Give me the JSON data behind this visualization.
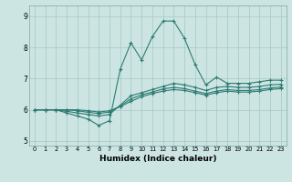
{
  "xlabel": "Humidex (Indice chaleur)",
  "bg_color": "#cce5e3",
  "grid_color": "#aaccca",
  "line_color": "#2e7b72",
  "xlim": [
    -0.5,
    23.5
  ],
  "ylim": [
    4.85,
    9.35
  ],
  "yticks": [
    5,
    6,
    7,
    8,
    9
  ],
  "xticks": [
    0,
    1,
    2,
    3,
    4,
    5,
    6,
    7,
    8,
    9,
    10,
    11,
    12,
    13,
    14,
    15,
    16,
    17,
    18,
    19,
    20,
    21,
    22,
    23
  ],
  "series": [
    [
      6.0,
      6.0,
      6.0,
      5.9,
      5.8,
      5.7,
      5.5,
      5.65,
      7.3,
      8.15,
      7.6,
      8.35,
      8.85,
      8.85,
      8.3,
      7.45,
      6.8,
      7.05,
      6.85,
      6.85,
      6.85,
      6.9,
      6.95,
      6.95
    ],
    [
      6.0,
      6.0,
      6.0,
      5.95,
      5.9,
      5.85,
      5.8,
      5.85,
      6.15,
      6.45,
      6.55,
      6.65,
      6.75,
      6.85,
      6.8,
      6.72,
      6.62,
      6.72,
      6.75,
      6.72,
      6.72,
      6.75,
      6.8,
      6.82
    ],
    [
      6.0,
      6.0,
      6.0,
      6.0,
      5.97,
      5.92,
      5.88,
      5.93,
      6.12,
      6.35,
      6.48,
      6.57,
      6.67,
      6.72,
      6.68,
      6.6,
      6.52,
      6.6,
      6.65,
      6.62,
      6.62,
      6.65,
      6.7,
      6.73
    ],
    [
      6.0,
      6.0,
      6.0,
      6.0,
      6.0,
      5.97,
      5.93,
      5.97,
      6.1,
      6.27,
      6.42,
      6.52,
      6.6,
      6.65,
      6.62,
      6.55,
      6.47,
      6.55,
      6.6,
      6.57,
      6.57,
      6.6,
      6.65,
      6.68
    ]
  ]
}
